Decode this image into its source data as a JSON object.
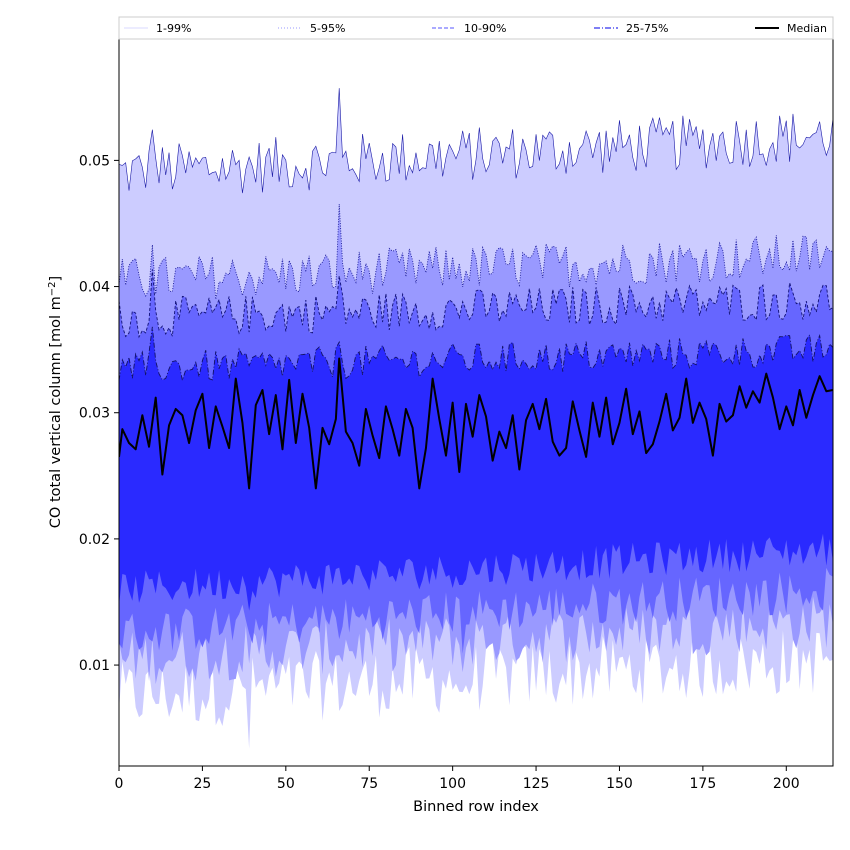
{
  "chart_data": {
    "type": "area",
    "title": "",
    "xlabel": "Binned row index",
    "ylabel_main": "CO total vertical column [mol m",
    "ylabel_sup": "−2",
    "ylabel_close": "]",
    "xlim": [
      0,
      214
    ],
    "ylim": [
      0.002,
      0.0597
    ],
    "xticks": [
      0,
      25,
      50,
      75,
      100,
      125,
      150,
      175,
      200
    ],
    "yticks": [
      0.01,
      0.02,
      0.03,
      0.04,
      0.05
    ],
    "ytick_labels": [
      "0.01",
      "0.02",
      "0.03",
      "0.04",
      "0.05"
    ],
    "n_points": 215,
    "legend": {
      "placement": "top, full width, single row",
      "entries": [
        {
          "label": "1-99%",
          "color": "#d8d8ff",
          "dash": "solid"
        },
        {
          "label": "5-95%",
          "color": "#9999ff",
          "dash": "dotted"
        },
        {
          "label": "10-90%",
          "color": "#7777ff",
          "dash": "dashed"
        },
        {
          "label": "25-75%",
          "color": "#3333ee",
          "dash": "dashdot"
        },
        {
          "label": "Median",
          "color": "#000000",
          "dash": "solid"
        }
      ]
    },
    "bands": [
      {
        "name": "1-99%",
        "fill": "#ccccff",
        "line": "#1a1aa6",
        "lower_base": [
          0.0075,
          0.0105
        ],
        "upper_base": [
          0.049,
          0.052
        ]
      },
      {
        "name": "5-95%",
        "fill": "#9999ff",
        "line": "#1a1a99",
        "lower_base": [
          0.0105,
          0.0135
        ],
        "upper_base": [
          0.0405,
          0.0425
        ]
      },
      {
        "name": "10-90%",
        "fill": "#6666ff",
        "line": "#111177",
        "lower_base": [
          0.0125,
          0.016
        ],
        "upper_base": [
          0.0375,
          0.039
        ]
      },
      {
        "name": "25-75%",
        "fill": "#2a2aff",
        "line": "#111166",
        "lower_base": [
          0.016,
          0.0192
        ],
        "upper_base": [
          0.0335,
          0.035
        ]
      }
    ],
    "median_anchor_points": [
      [
        0,
        0.0265
      ],
      [
        1,
        0.0287
      ],
      [
        3,
        0.0276
      ],
      [
        5,
        0.0271
      ],
      [
        7,
        0.0298
      ],
      [
        9,
        0.0273
      ],
      [
        11,
        0.0312
      ],
      [
        13,
        0.0251
      ],
      [
        15,
        0.029
      ],
      [
        17,
        0.0303
      ],
      [
        19,
        0.0298
      ],
      [
        21,
        0.0276
      ],
      [
        23,
        0.0302
      ],
      [
        25,
        0.0315
      ],
      [
        27,
        0.0272
      ],
      [
        29,
        0.0305
      ],
      [
        31,
        0.0289
      ],
      [
        33,
        0.0272
      ],
      [
        35,
        0.0327
      ],
      [
        37,
        0.0292
      ],
      [
        39,
        0.024
      ],
      [
        41,
        0.0306
      ],
      [
        43,
        0.0318
      ],
      [
        45,
        0.0283
      ],
      [
        47,
        0.0314
      ],
      [
        49,
        0.0271
      ],
      [
        51,
        0.0326
      ],
      [
        53,
        0.0276
      ],
      [
        55,
        0.0315
      ],
      [
        57,
        0.0288
      ],
      [
        59,
        0.024
      ],
      [
        61,
        0.0288
      ],
      [
        63,
        0.0275
      ],
      [
        65,
        0.0295
      ],
      [
        66,
        0.0343
      ],
      [
        68,
        0.0285
      ],
      [
        70,
        0.0276
      ],
      [
        72,
        0.0258
      ],
      [
        74,
        0.0303
      ],
      [
        76,
        0.0282
      ],
      [
        78,
        0.0264
      ],
      [
        80,
        0.0305
      ],
      [
        82,
        0.0287
      ],
      [
        84,
        0.0266
      ],
      [
        86,
        0.0303
      ],
      [
        88,
        0.0288
      ],
      [
        90,
        0.024
      ],
      [
        92,
        0.0272
      ],
      [
        94,
        0.0327
      ],
      [
        96,
        0.0295
      ],
      [
        98,
        0.0266
      ],
      [
        100,
        0.0308
      ],
      [
        102,
        0.0253
      ],
      [
        104,
        0.0307
      ],
      [
        106,
        0.0281
      ],
      [
        108,
        0.0314
      ],
      [
        110,
        0.0297
      ],
      [
        112,
        0.0262
      ],
      [
        114,
        0.0285
      ],
      [
        116,
        0.0272
      ],
      [
        118,
        0.0298
      ],
      [
        120,
        0.0255
      ],
      [
        122,
        0.0294
      ],
      [
        124,
        0.0307
      ],
      [
        126,
        0.0287
      ],
      [
        128,
        0.0311
      ],
      [
        130,
        0.0277
      ],
      [
        132,
        0.0266
      ],
      [
        134,
        0.0272
      ],
      [
        136,
        0.0309
      ],
      [
        138,
        0.0286
      ],
      [
        140,
        0.0265
      ],
      [
        142,
        0.0308
      ],
      [
        144,
        0.0281
      ],
      [
        146,
        0.0312
      ],
      [
        148,
        0.0275
      ],
      [
        150,
        0.0292
      ],
      [
        152,
        0.0319
      ],
      [
        154,
        0.0283
      ],
      [
        156,
        0.0301
      ],
      [
        158,
        0.0268
      ],
      [
        160,
        0.0275
      ],
      [
        162,
        0.0293
      ],
      [
        164,
        0.0315
      ],
      [
        166,
        0.0286
      ],
      [
        168,
        0.0296
      ],
      [
        170,
        0.0327
      ],
      [
        172,
        0.0292
      ],
      [
        174,
        0.0308
      ],
      [
        176,
        0.0295
      ],
      [
        178,
        0.0266
      ],
      [
        180,
        0.0307
      ],
      [
        182,
        0.0293
      ],
      [
        184,
        0.0298
      ],
      [
        186,
        0.0321
      ],
      [
        188,
        0.0304
      ],
      [
        190,
        0.0317
      ],
      [
        192,
        0.0308
      ],
      [
        194,
        0.0331
      ],
      [
        196,
        0.0312
      ],
      [
        198,
        0.0287
      ],
      [
        200,
        0.0305
      ],
      [
        202,
        0.029
      ],
      [
        204,
        0.0318
      ],
      [
        206,
        0.0296
      ],
      [
        208,
        0.0314
      ],
      [
        210,
        0.0329
      ],
      [
        212,
        0.0317
      ],
      [
        214,
        0.0318
      ]
    ]
  }
}
